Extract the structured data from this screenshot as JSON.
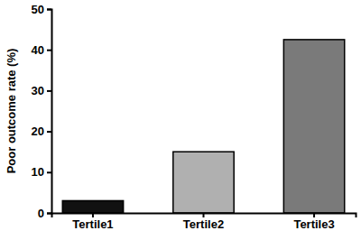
{
  "chart_data": {
    "type": "bar",
    "y_label": "Poor outcome rate (%)",
    "categories": [
      "Tertile1",
      "Tertile2",
      "Tertile3"
    ],
    "values": [
      3,
      15,
      42.5
    ],
    "colors": [
      "#111111",
      "#b0b0b0",
      "#7a7a7a"
    ],
    "ylim": [
      0,
      50
    ],
    "yticks": [
      0,
      10,
      20,
      30,
      40,
      50
    ],
    "grid": false
  }
}
